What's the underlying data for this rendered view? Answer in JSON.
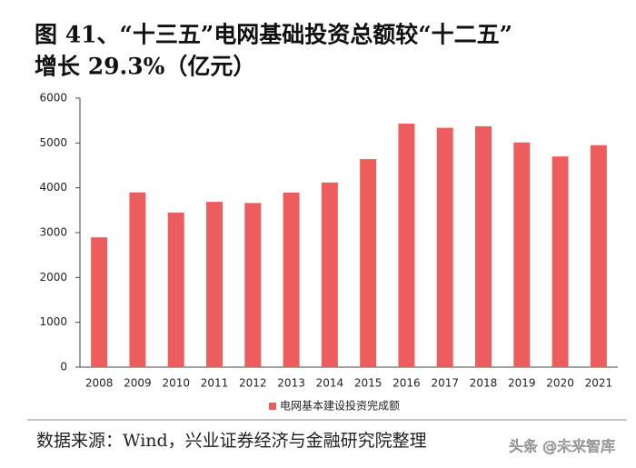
{
  "chart_data": {
    "type": "bar",
    "title": [
      "图 41、“十三五”电网基础投资总额较“十二五”",
      "增长 29.3%（亿元）"
    ],
    "categories": [
      "2008",
      "2009",
      "2010",
      "2011",
      "2012",
      "2013",
      "2014",
      "2015",
      "2016",
      "2017",
      "2018",
      "2019",
      "2020",
      "2021"
    ],
    "series": [
      {
        "name": "电网基本建设投资完成额",
        "color": "#ee5d5d",
        "values": [
          2895,
          3898,
          3448,
          3687,
          3661,
          3894,
          4119,
          4640,
          5431,
          5339,
          5373,
          5012,
          4699,
          4951
        ]
      }
    ],
    "ylim": [
      0,
      6000
    ],
    "yticks": [
      0,
      1000,
      2000,
      3000,
      4000,
      5000,
      6000
    ],
    "legend": "bottom",
    "source": "数据来源：Wind，兴业证券经济与金融研究院整理",
    "watermark": "头条 @未来智库"
  }
}
